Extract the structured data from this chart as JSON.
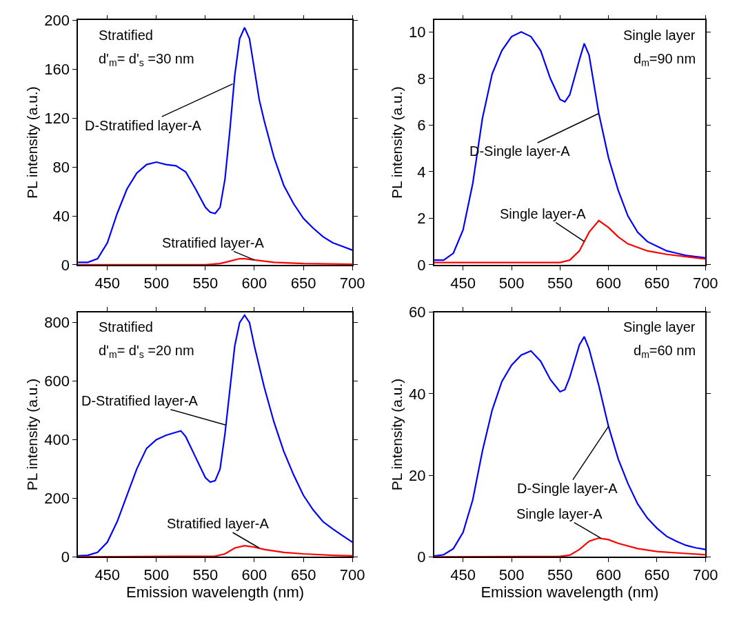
{
  "chart_data": [
    {
      "type": "line",
      "ylabel": "PL intensity (a.u.)",
      "xlim": [
        420,
        700
      ],
      "xticks": [
        450,
        500,
        550,
        600,
        650,
        700
      ],
      "ylim": [
        0,
        200
      ],
      "yticks": [
        0,
        40,
        80,
        120,
        160,
        200
      ],
      "annotations": [
        "Stratified",
        "d'$_{m}$= d'$_{s}$ =30 nm",
        {
          "text": "D-Stratified layer-A",
          "x": 578,
          "y": 148
        },
        {
          "text": "Stratified layer-A",
          "x": 600,
          "y": 4
        }
      ],
      "series": [
        {
          "color": "#0000ff",
          "x": [
            420,
            430,
            440,
            450,
            460,
            470,
            480,
            490,
            500,
            510,
            520,
            530,
            540,
            550,
            555,
            560,
            565,
            570,
            575,
            580,
            585,
            590,
            595,
            600,
            605,
            610,
            620,
            630,
            640,
            650,
            660,
            670,
            680,
            690,
            700
          ],
          "values": [
            2,
            2,
            5,
            18,
            42,
            62,
            75,
            82,
            84,
            82,
            81,
            76,
            62,
            47,
            43,
            42,
            47,
            70,
            110,
            155,
            185,
            194,
            185,
            160,
            135,
            118,
            88,
            65,
            50,
            38,
            30,
            23,
            18,
            15,
            12
          ]
        },
        {
          "color": "#ff0000",
          "x": [
            420,
            500,
            550,
            565,
            575,
            585,
            590,
            600,
            620,
            650,
            700
          ],
          "values": [
            0,
            0,
            0,
            1,
            3,
            5,
            5,
            4,
            2,
            1,
            0.5
          ]
        }
      ]
    },
    {
      "type": "line",
      "ylabel": "PL intensity (a.u.)",
      "xlim": [
        420,
        700
      ],
      "xticks": [
        450,
        500,
        550,
        600,
        650,
        700
      ],
      "ylim": [
        0,
        10.5
      ],
      "yticks": [
        0,
        2,
        4,
        6,
        8,
        10
      ],
      "annotations": [
        "Single layer",
        "d$_{m}$=90 nm",
        {
          "text": "D-Single layer-A",
          "x": 590,
          "y": 6.5
        },
        {
          "text": "Single layer-A",
          "x": 575,
          "y": 1
        }
      ],
      "series": [
        {
          "color": "#0000ff",
          "x": [
            420,
            430,
            440,
            450,
            460,
            470,
            480,
            490,
            500,
            510,
            520,
            530,
            540,
            550,
            555,
            560,
            570,
            575,
            580,
            590,
            600,
            610,
            620,
            630,
            640,
            650,
            660,
            670,
            680,
            690,
            700
          ],
          "values": [
            0.2,
            0.2,
            0.5,
            1.5,
            3.5,
            6.3,
            8.2,
            9.2,
            9.8,
            10,
            9.8,
            9.2,
            8,
            7.1,
            7,
            7.3,
            8.8,
            9.5,
            9,
            6.5,
            4.6,
            3.2,
            2.1,
            1.4,
            1,
            0.8,
            0.6,
            0.5,
            0.4,
            0.35,
            0.3
          ]
        },
        {
          "color": "#ff0000",
          "x": [
            420,
            500,
            550,
            560,
            570,
            580,
            590,
            600,
            610,
            620,
            640,
            660,
            680,
            700
          ],
          "values": [
            0.1,
            0.1,
            0.1,
            0.2,
            0.6,
            1.4,
            1.9,
            1.6,
            1.2,
            0.9,
            0.6,
            0.45,
            0.35,
            0.25
          ]
        }
      ]
    },
    {
      "type": "line",
      "xlabel": "Emission wavelength (nm)",
      "ylabel": "PL intensity (a.u.)",
      "xlim": [
        420,
        700
      ],
      "xticks": [
        450,
        500,
        550,
        600,
        650,
        700
      ],
      "ylim": [
        0,
        835
      ],
      "yticks": [
        0,
        200,
        400,
        600,
        800
      ],
      "annotations": [
        "Stratified",
        "d'$_{m}$= d'$_{s}$ =20 nm",
        {
          "text": "D-Stratified layer-A",
          "x": 571,
          "y": 450
        },
        {
          "text": "Stratified layer-A",
          "x": 605,
          "y": 30
        }
      ],
      "series": [
        {
          "color": "#0000ff",
          "x": [
            420,
            430,
            440,
            450,
            460,
            470,
            480,
            490,
            500,
            510,
            520,
            525,
            530,
            540,
            550,
            555,
            560,
            565,
            570,
            575,
            580,
            585,
            590,
            595,
            600,
            610,
            620,
            630,
            640,
            650,
            660,
            670,
            680,
            690,
            700
          ],
          "values": [
            3,
            5,
            15,
            50,
            120,
            210,
            300,
            370,
            400,
            415,
            425,
            430,
            410,
            340,
            270,
            255,
            260,
            300,
            420,
            570,
            720,
            800,
            825,
            800,
            720,
            580,
            460,
            360,
            280,
            210,
            160,
            120,
            95,
            72,
            50
          ]
        },
        {
          "color": "#ff0000",
          "x": [
            420,
            560,
            570,
            580,
            590,
            600,
            610,
            630,
            650,
            680,
            700
          ],
          "values": [
            0,
            2,
            10,
            30,
            38,
            33,
            25,
            15,
            10,
            5,
            3
          ]
        }
      ]
    },
    {
      "type": "line",
      "xlabel": "Emission wavelength (nm)",
      "ylabel": "PL intensity (a.u.)",
      "xlim": [
        420,
        700
      ],
      "xticks": [
        450,
        500,
        550,
        600,
        650,
        700
      ],
      "ylim": [
        0,
        60
      ],
      "yticks": [
        0,
        20,
        40,
        60
      ],
      "annotations": [
        "Single layer",
        "d$_{m}$=60 nm",
        {
          "text": "D-Single layer-A",
          "x": 600,
          "y": 32
        },
        {
          "text": "Single layer-A",
          "x": 592,
          "y": 4.6
        }
      ],
      "series": [
        {
          "color": "#0000ff",
          "x": [
            420,
            430,
            440,
            450,
            460,
            470,
            480,
            490,
            500,
            510,
            520,
            530,
            540,
            550,
            555,
            560,
            570,
            575,
            580,
            590,
            600,
            610,
            620,
            630,
            640,
            650,
            660,
            670,
            680,
            690,
            700
          ],
          "values": [
            0.2,
            0.5,
            2,
            6,
            14,
            26,
            36,
            43,
            47,
            49.5,
            50.5,
            48,
            43.5,
            40.5,
            41,
            44,
            52,
            54,
            51,
            42,
            32,
            24,
            18,
            13,
            9.5,
            7,
            5,
            3.8,
            2.8,
            2.2,
            1.8
          ]
        },
        {
          "color": "#ff0000",
          "x": [
            420,
            550,
            560,
            570,
            580,
            590,
            600,
            610,
            630,
            650,
            680,
            700
          ],
          "values": [
            0,
            0.1,
            0.4,
            1.8,
            3.8,
            4.6,
            4.2,
            3.3,
            2,
            1.3,
            0.8,
            0.5
          ]
        }
      ]
    }
  ]
}
